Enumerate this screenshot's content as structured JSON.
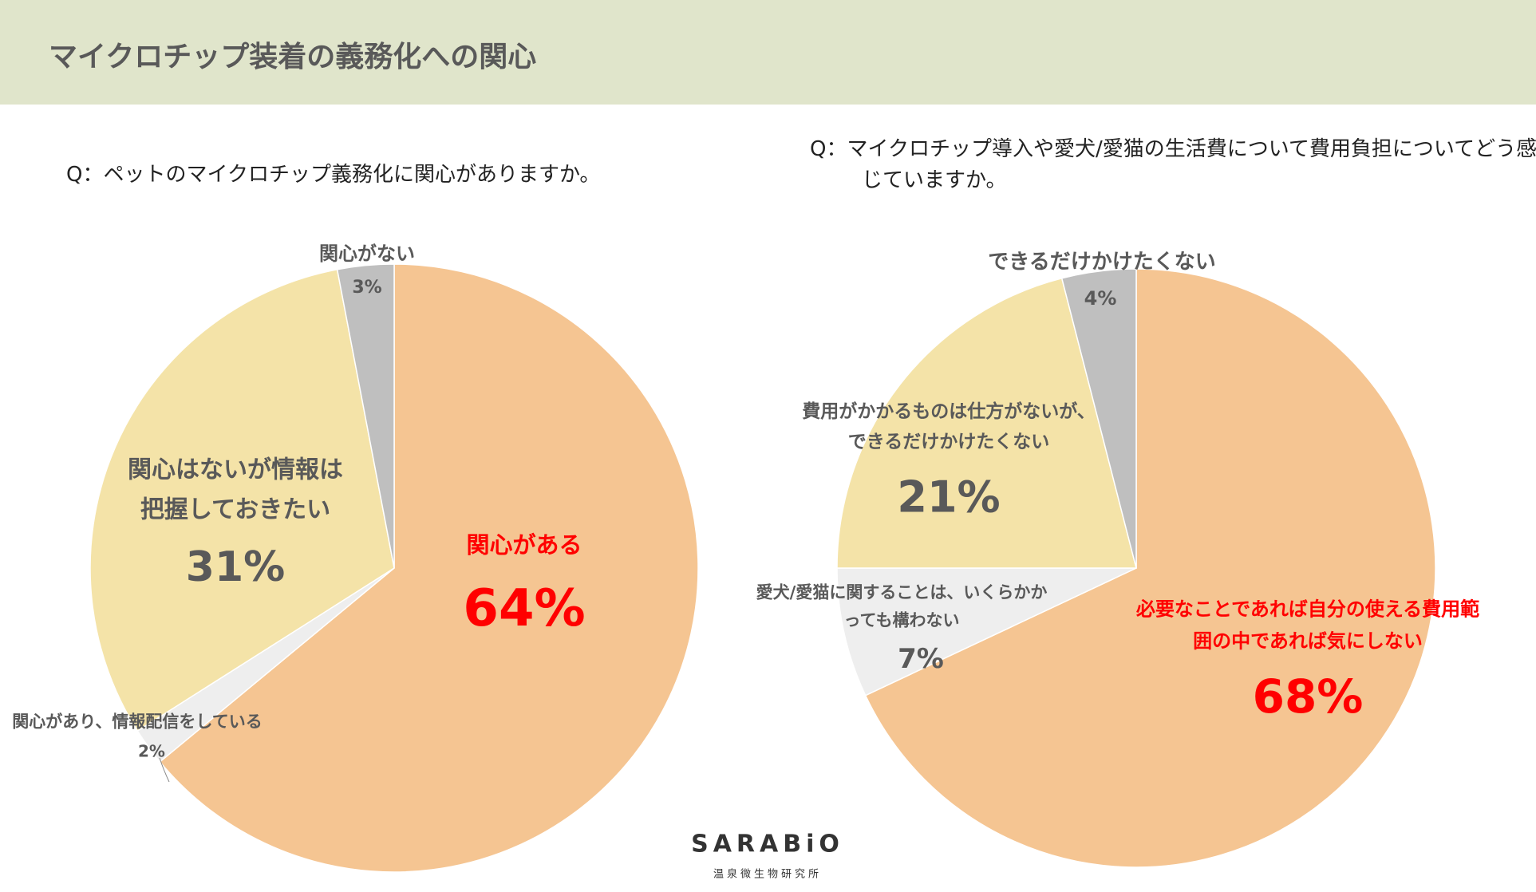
{
  "header": {
    "title": "マイクロチップ装着の義務化への関心"
  },
  "logo": {
    "name": "SARABiO",
    "subtitle": "温泉微生物研究所"
  },
  "chart_data": [
    {
      "type": "pie",
      "title": "Q：ペットのマイクロチップ義務化に関心がありますか。",
      "categories": [
        "関心がある",
        "関心があり、情報配信をしている",
        "関心はないが情報は\n把握しておきたい",
        "関心がない"
      ],
      "values": [
        64,
        2,
        31,
        3
      ],
      "value_labels": [
        "64%",
        "2%",
        "31%",
        "3%"
      ],
      "colors": [
        "#f5c592",
        "#eeeeee",
        "#f4e3a8",
        "#bfbfbf"
      ],
      "label_colors": [
        "#ff0000",
        "#595959",
        "#595959",
        "#595959"
      ]
    },
    {
      "type": "pie",
      "title": "Q：マイクロチップ導入や愛犬/愛猫の生活費について費用負担についてどう感じていますか。",
      "categories": [
        "必要なことであれば自分の使える費用範\n囲の中であれば気にしない",
        "愛犬/愛猫に関することは、いくらかか\nっても構わない",
        "費用がかかるものは仕方がないが、\nできるだけかけたくない",
        "できるだけかけたくない"
      ],
      "values": [
        68,
        7,
        21,
        4
      ],
      "value_labels": [
        "68%",
        "7%",
        "21%",
        "4%"
      ],
      "colors": [
        "#f5c592",
        "#eeeeee",
        "#f4e3a8",
        "#bfbfbf"
      ],
      "label_colors": [
        "#ff0000",
        "#595959",
        "#595959",
        "#595959"
      ]
    }
  ]
}
